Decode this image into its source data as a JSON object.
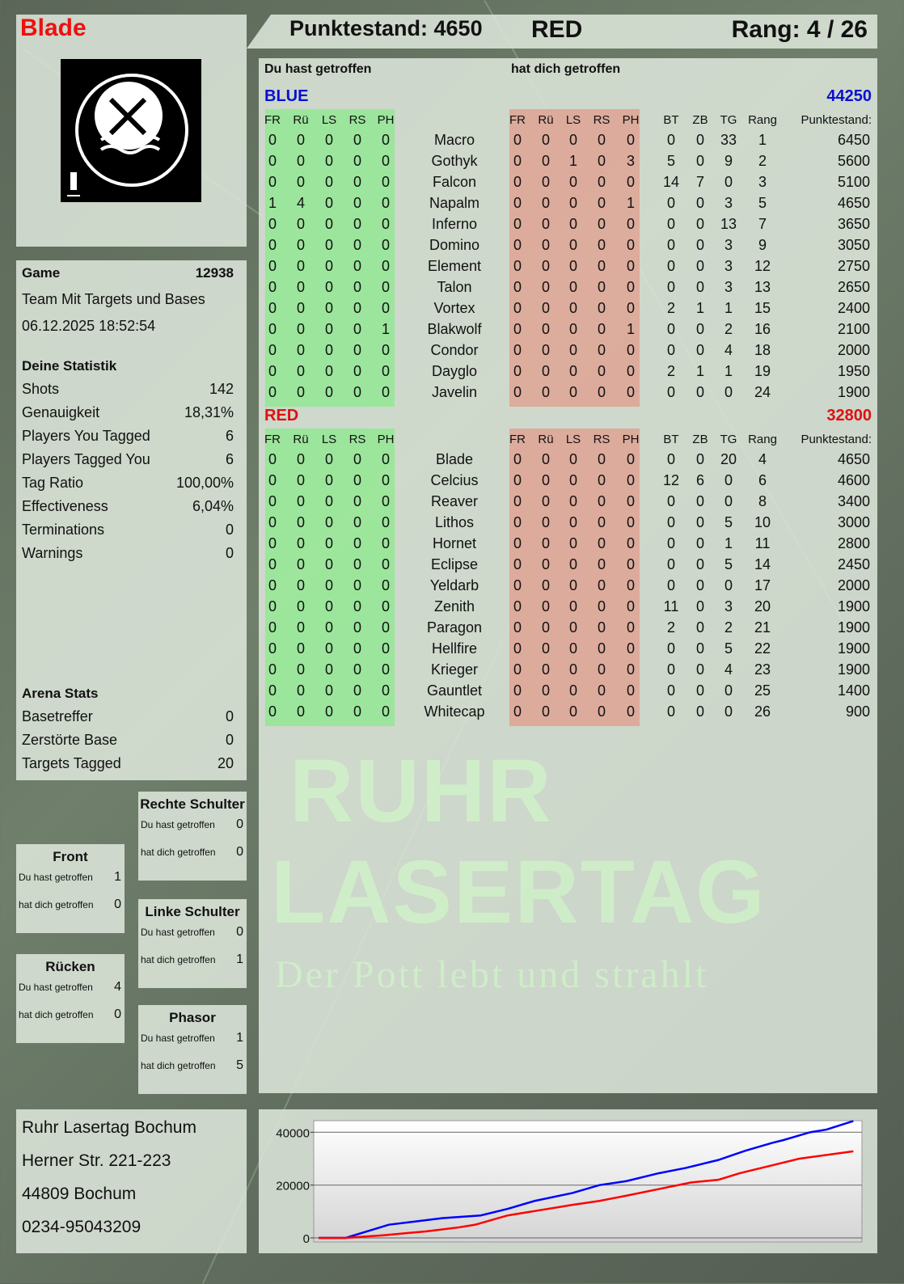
{
  "player": {
    "name": "Blade",
    "score_label": "Punktestand: 4650",
    "team": "RED",
    "rank_label": "Rang: 4 / 26"
  },
  "logo": {
    "text_top": "RUHR",
    "text_bottom": "LASERTAG",
    "number": "1"
  },
  "game": {
    "label": "Game",
    "id": "12938",
    "mode": "Team Mit Targets und Bases",
    "datetime": "06.12.2025 18:52:54"
  },
  "stats": {
    "title": "Deine Statistik",
    "items": [
      {
        "label": "Shots",
        "value": "142"
      },
      {
        "label": "Genauigkeit",
        "value": "18,31%"
      },
      {
        "label": "Players You Tagged",
        "value": "6"
      },
      {
        "label": "Players Tagged You",
        "value": "6"
      },
      {
        "label": "Tag Ratio",
        "value": "100,00%"
      },
      {
        "label": "Effectiveness",
        "value": "6,04%"
      },
      {
        "label": "Terminations",
        "value": "0"
      },
      {
        "label": "Warnings",
        "value": "0"
      }
    ]
  },
  "arena": {
    "title": "Arena Stats",
    "items": [
      {
        "label": "Basetreffer",
        "value": "0"
      },
      {
        "label": "Zerstörte Base",
        "value": "0"
      },
      {
        "label": "Targets Tagged",
        "value": "20"
      }
    ]
  },
  "zones": [
    {
      "title": "Rechte Schulter",
      "you_hit_label": "Du hast getroffen",
      "you_hit": "0",
      "hit_you_label": "hat dich getroffen",
      "hit_you": "0"
    },
    {
      "title": "Front",
      "you_hit_label": "Du hast getroffen",
      "you_hit": "1",
      "hit_you_label": "hat dich getroffen",
      "hit_you": "0"
    },
    {
      "title": "Linke Schulter",
      "you_hit_label": "Du hast getroffen",
      "you_hit": "0",
      "hit_you_label": "hat dich getroffen",
      "hit_you": "1"
    },
    {
      "title": "Rücken",
      "you_hit_label": "Du hast getroffen",
      "you_hit": "4",
      "hit_you_label": "hat dich getroffen",
      "hit_you": "0"
    },
    {
      "title": "Phasor",
      "you_hit_label": "Du hast getroffen",
      "you_hit": "1",
      "hit_you_label": "hat dich getroffen",
      "hit_you": "5"
    }
  ],
  "address": [
    "Ruhr Lasertag Bochum",
    "Herner Str. 221-223",
    "44809 Bochum",
    "0234-95043209"
  ],
  "table": {
    "you_hit_heading": "Du hast getroffen",
    "hit_you_heading": "hat dich getroffen",
    "columns_hit": [
      "FR",
      "Rü",
      "LS",
      "RS",
      "PH"
    ],
    "columns_stats": [
      "BT",
      "ZB",
      "TG",
      "Rang",
      "Punktestand:"
    ],
    "teams": [
      {
        "name": "BLUE",
        "total": "44250",
        "color": "#0a10d0",
        "players": [
          [
            "Macro",
            [
              0,
              0,
              0,
              0,
              0
            ],
            [
              0,
              0,
              0,
              0,
              0
            ],
            [
              0,
              0,
              33,
              1,
              6450
            ]
          ],
          [
            "Gothyk",
            [
              0,
              0,
              0,
              0,
              0
            ],
            [
              0,
              0,
              1,
              0,
              3
            ],
            [
              5,
              0,
              9,
              2,
              5600
            ]
          ],
          [
            "Falcon",
            [
              0,
              0,
              0,
              0,
              0
            ],
            [
              0,
              0,
              0,
              0,
              0
            ],
            [
              14,
              7,
              0,
              3,
              5100
            ]
          ],
          [
            "Napalm",
            [
              1,
              4,
              0,
              0,
              0
            ],
            [
              0,
              0,
              0,
              0,
              1
            ],
            [
              0,
              0,
              3,
              5,
              4650
            ]
          ],
          [
            "Inferno",
            [
              0,
              0,
              0,
              0,
              0
            ],
            [
              0,
              0,
              0,
              0,
              0
            ],
            [
              0,
              0,
              13,
              7,
              3650
            ]
          ],
          [
            "Domino",
            [
              0,
              0,
              0,
              0,
              0
            ],
            [
              0,
              0,
              0,
              0,
              0
            ],
            [
              0,
              0,
              3,
              9,
              3050
            ]
          ],
          [
            "Element",
            [
              0,
              0,
              0,
              0,
              0
            ],
            [
              0,
              0,
              0,
              0,
              0
            ],
            [
              0,
              0,
              3,
              12,
              2750
            ]
          ],
          [
            "Talon",
            [
              0,
              0,
              0,
              0,
              0
            ],
            [
              0,
              0,
              0,
              0,
              0
            ],
            [
              0,
              0,
              3,
              13,
              2650
            ]
          ],
          [
            "Vortex",
            [
              0,
              0,
              0,
              0,
              0
            ],
            [
              0,
              0,
              0,
              0,
              0
            ],
            [
              2,
              1,
              1,
              15,
              2400
            ]
          ],
          [
            "Blakwolf",
            [
              0,
              0,
              0,
              0,
              1
            ],
            [
              0,
              0,
              0,
              0,
              1
            ],
            [
              0,
              0,
              2,
              16,
              2100
            ]
          ],
          [
            "Condor",
            [
              0,
              0,
              0,
              0,
              0
            ],
            [
              0,
              0,
              0,
              0,
              0
            ],
            [
              0,
              0,
              4,
              18,
              2000
            ]
          ],
          [
            "Dayglo",
            [
              0,
              0,
              0,
              0,
              0
            ],
            [
              0,
              0,
              0,
              0,
              0
            ],
            [
              2,
              1,
              1,
              19,
              1950
            ]
          ],
          [
            "Javelin",
            [
              0,
              0,
              0,
              0,
              0
            ],
            [
              0,
              0,
              0,
              0,
              0
            ],
            [
              0,
              0,
              0,
              24,
              1900
            ]
          ]
        ]
      },
      {
        "name": "RED",
        "total": "32800",
        "color": "#e01010",
        "players": [
          [
            "Blade",
            [
              0,
              0,
              0,
              0,
              0
            ],
            [
              0,
              0,
              0,
              0,
              0
            ],
            [
              0,
              0,
              20,
              4,
              4650
            ]
          ],
          [
            "Celcius",
            [
              0,
              0,
              0,
              0,
              0
            ],
            [
              0,
              0,
              0,
              0,
              0
            ],
            [
              12,
              6,
              0,
              6,
              4600
            ]
          ],
          [
            "Reaver",
            [
              0,
              0,
              0,
              0,
              0
            ],
            [
              0,
              0,
              0,
              0,
              0
            ],
            [
              0,
              0,
              0,
              8,
              3400
            ]
          ],
          [
            "Lithos",
            [
              0,
              0,
              0,
              0,
              0
            ],
            [
              0,
              0,
              0,
              0,
              0
            ],
            [
              0,
              0,
              5,
              10,
              3000
            ]
          ],
          [
            "Hornet",
            [
              0,
              0,
              0,
              0,
              0
            ],
            [
              0,
              0,
              0,
              0,
              0
            ],
            [
              0,
              0,
              1,
              11,
              2800
            ]
          ],
          [
            "Eclipse",
            [
              0,
              0,
              0,
              0,
              0
            ],
            [
              0,
              0,
              0,
              0,
              0
            ],
            [
              0,
              0,
              5,
              14,
              2450
            ]
          ],
          [
            "Yeldarb",
            [
              0,
              0,
              0,
              0,
              0
            ],
            [
              0,
              0,
              0,
              0,
              0
            ],
            [
              0,
              0,
              0,
              17,
              2000
            ]
          ],
          [
            "Zenith",
            [
              0,
              0,
              0,
              0,
              0
            ],
            [
              0,
              0,
              0,
              0,
              0
            ],
            [
              11,
              0,
              3,
              20,
              1900
            ]
          ],
          [
            "Paragon",
            [
              0,
              0,
              0,
              0,
              0
            ],
            [
              0,
              0,
              0,
              0,
              0
            ],
            [
              2,
              0,
              2,
              21,
              1900
            ]
          ],
          [
            "Hellfire",
            [
              0,
              0,
              0,
              0,
              0
            ],
            [
              0,
              0,
              0,
              0,
              0
            ],
            [
              0,
              0,
              5,
              22,
              1900
            ]
          ],
          [
            "Krieger",
            [
              0,
              0,
              0,
              0,
              0
            ],
            [
              0,
              0,
              0,
              0,
              0
            ],
            [
              0,
              0,
              4,
              23,
              1900
            ]
          ],
          [
            "Gauntlet",
            [
              0,
              0,
              0,
              0,
              0
            ],
            [
              0,
              0,
              0,
              0,
              0
            ],
            [
              0,
              0,
              0,
              25,
              1400
            ]
          ],
          [
            "Whitecap",
            [
              0,
              0,
              0,
              0,
              0
            ],
            [
              0,
              0,
              0,
              0,
              0
            ],
            [
              0,
              0,
              0,
              26,
              900
            ]
          ]
        ]
      }
    ]
  },
  "watermark": {
    "line1": "RUHR",
    "line2": "LASERTAG",
    "slogan": "Der Pott lebt und strahlt"
  },
  "colors": {
    "you_hit_band": "#90e890",
    "hit_you_band": "#e0a090"
  },
  "chart_data": {
    "type": "line",
    "ylim": [
      0,
      45000
    ],
    "yticks": [
      0,
      20000,
      40000
    ],
    "grid": true,
    "series": [
      {
        "color": "#0000ff",
        "x": [
          0,
          5,
          13,
          23,
          30,
          35,
          40,
          47,
          52,
          57,
          63,
          68,
          74,
          79,
          84,
          86,
          91,
          94,
          99
        ],
        "y": [
          0,
          0,
          5000,
          7500,
          8500,
          11000,
          14000,
          17000,
          20000,
          21500,
          24500,
          26500,
          29500,
          33000,
          36000,
          37000,
          40000,
          41000,
          44250
        ]
      },
      {
        "color": "#ff0000",
        "x": [
          0,
          5,
          12,
          20,
          26,
          29,
          35,
          41,
          47,
          52,
          57,
          63,
          69,
          74,
          78,
          84,
          89,
          99
        ],
        "y": [
          0,
          0,
          1000,
          2500,
          4000,
          5000,
          8500,
          10500,
          12500,
          14000,
          16000,
          18500,
          21000,
          22000,
          24500,
          27500,
          30000,
          32800
        ]
      }
    ]
  }
}
